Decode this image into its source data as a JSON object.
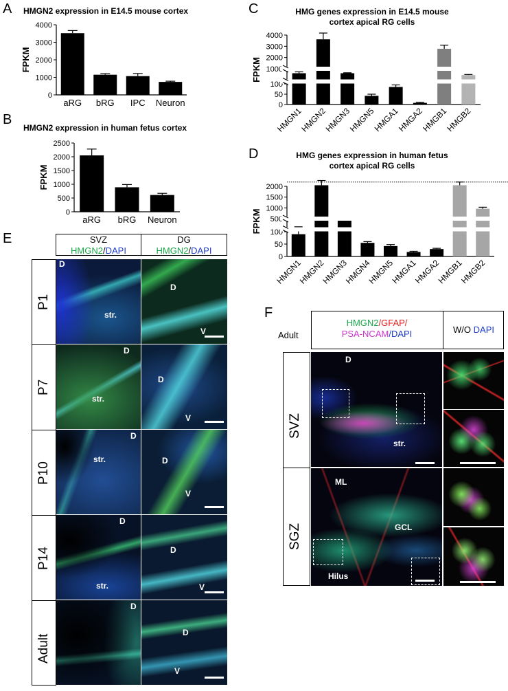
{
  "panels": {
    "A": {
      "letter": "A",
      "title": "HMGN2 expression in E14.5 mouse cortex"
    },
    "B": {
      "letter": "B",
      "title": "HMGN2 expression in human fetus cortex"
    },
    "C": {
      "letter": "C",
      "title_line1": "HMG genes expression in E14.5 mouse",
      "title_line2": "cortex apical RG cells"
    },
    "D": {
      "letter": "D",
      "title_line1": "HMG genes expression in human fetus",
      "title_line2": "cortex apical RG cells"
    },
    "E": {
      "letter": "E"
    },
    "F": {
      "letter": "F"
    }
  },
  "chart_data": [
    {
      "panel": "A",
      "type": "bar",
      "title": "HMGN2 expression in E14.5 mouse cortex",
      "ylabel": "FPKM",
      "ylim": [
        0,
        4000
      ],
      "yticks": [
        "0",
        "1000",
        "2000",
        "3000",
        "4000"
      ],
      "categories": [
        "aRG",
        "bRG",
        "IPC",
        "Neuron"
      ],
      "values": [
        3520,
        1150,
        1070,
        740
      ],
      "errors": [
        150,
        60,
        150,
        40
      ],
      "colors": [
        "#000000",
        "#000000",
        "#000000",
        "#000000"
      ]
    },
    {
      "panel": "B",
      "type": "bar",
      "title": "HMGN2 expression in human fetus cortex",
      "ylabel": "FPKM",
      "ylim": [
        0,
        2500
      ],
      "yticks": [
        "0",
        "500",
        "1000",
        "1500",
        "2000",
        "2500"
      ],
      "categories": [
        "aRG",
        "bRG",
        "Neuron"
      ],
      "values": [
        2050,
        890,
        610
      ],
      "errors": [
        230,
        100,
        60
      ],
      "colors": [
        "#000000",
        "#000000",
        "#000000"
      ]
    },
    {
      "panel": "C",
      "type": "bar",
      "title": "HMG genes expression in E14.5 mouse cortex apical RG cells",
      "ylabel": "FPKM",
      "scale": "broken axis",
      "yticks": [
        "0",
        "50",
        "100",
        "1000",
        "2000",
        "3000",
        "4000"
      ],
      "categories": [
        "HMGN1",
        "HMGN2",
        "HMGN3",
        "HMGN5",
        "HMGA1",
        "HMGA2",
        "HMGB1",
        "HMGB2"
      ],
      "values": [
        610,
        3620,
        610,
        42,
        85,
        8,
        2780,
        450
      ],
      "errors": [
        120,
        560,
        40,
        8,
        10,
        3,
        320,
        50
      ],
      "colors": [
        "#000000",
        "#000000",
        "#000000",
        "#000000",
        "#000000",
        "#000000",
        "#7f7f7f",
        "#b3b3b3"
      ]
    },
    {
      "panel": "D",
      "type": "bar",
      "title": "HMG genes expression in human fetus cortex apical RG cells",
      "ylabel": "FPKM",
      "scale": "broken axis",
      "yticks": [
        "0",
        "50",
        "100",
        "500",
        "1000",
        "1500",
        "2000"
      ],
      "categories": [
        "HMGN1",
        "HMGN2",
        "HMGN3",
        "HMGN4",
        "HMGN5",
        "HMGA1",
        "HMGA2",
        "HMGB1",
        "HMGB2"
      ],
      "values": [
        90,
        2050,
        490,
        55,
        42,
        18,
        30,
        2050,
        960
      ],
      "errors": [
        15,
        220,
        30,
        5,
        6,
        3,
        3,
        150,
        70
      ],
      "colors": [
        "#000000",
        "#000000",
        "#000000",
        "#000000",
        "#000000",
        "#000000",
        "#000000",
        "#a6a6a6",
        "#a6a6a6"
      ]
    }
  ],
  "figureE": {
    "col1_line1": "SVZ",
    "col1_hmgn2": "HMGN2",
    "col1_slash": "/",
    "col1_dapi": "DAPI",
    "col2_line1": "DG",
    "col2_hmgn2": "HMGN2",
    "col2_slash": "/",
    "col2_dapi": "DAPI",
    "rows": [
      "P1",
      "P7",
      "P10",
      "P14",
      "Adult"
    ],
    "labels": {
      "D": "D",
      "V": "V",
      "str": "str."
    }
  },
  "figureF": {
    "adult": "Adult",
    "hdr_hmgn2": "HMGN2",
    "hdr_gfap": "/GFAP/",
    "hdr_psa": "PSA-NCAM",
    "hdr_dapi": "/DAPI",
    "wo": "W/O",
    "wo_dapi": "DAPI",
    "row1": "SVZ",
    "row2": "SGZ",
    "labels": {
      "D": "D",
      "str": "str.",
      "ML": "ML",
      "GCL": "GCL",
      "Hilus": "Hilus"
    }
  },
  "colors": {
    "green": "#1aa64a",
    "blue": "#1f3cc9",
    "red": "#e02020",
    "magenta": "#cc33cc"
  }
}
